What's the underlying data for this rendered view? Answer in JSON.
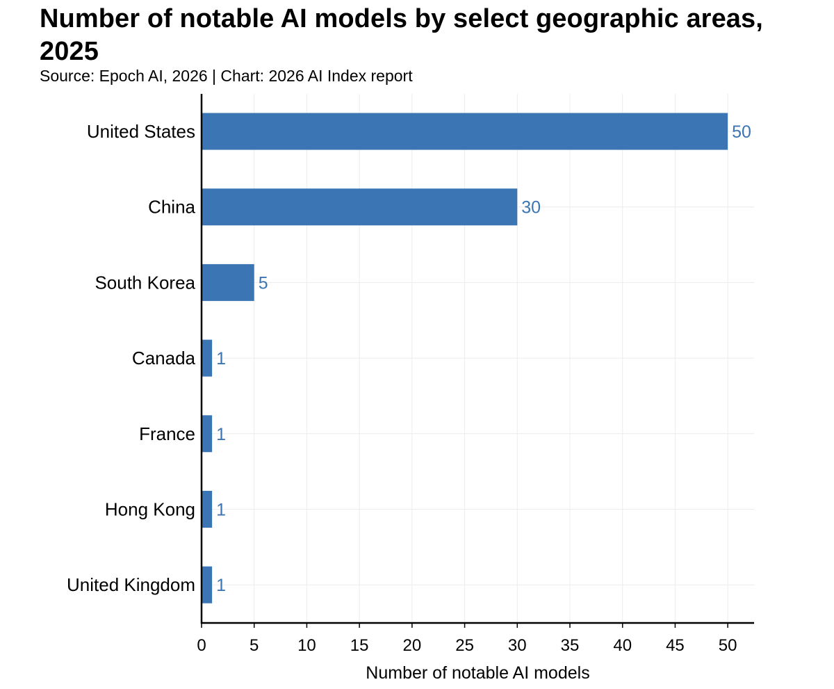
{
  "header": {
    "title": "Number of notable AI models by select geographic areas, 2025",
    "subtitle": "Source: Epoch AI, 2026 | Chart: 2026 AI Index report"
  },
  "colors": {
    "bar": "#3b75b3",
    "value_label": "#3b75b3",
    "grid": "#ececec",
    "axis": "#000000"
  },
  "chart_data": {
    "type": "bar",
    "orientation": "horizontal",
    "title": "Number of notable AI models by select geographic areas, 2025",
    "subtitle": "Source: Epoch AI, 2026 | Chart: 2026 AI Index report",
    "categories": [
      "United States",
      "China",
      "South Korea",
      "Canada",
      "France",
      "Hong Kong",
      "United Kingdom"
    ],
    "values": [
      50,
      30,
      5,
      1,
      1,
      1,
      1
    ],
    "data_labels": [
      "50",
      "30",
      "5",
      "1",
      "1",
      "1",
      "1"
    ],
    "xlabel": "Number of notable AI models",
    "ylabel": "",
    "xlim": [
      0,
      52.5
    ],
    "xticks": [
      0,
      5,
      10,
      15,
      20,
      25,
      30,
      35,
      40,
      45,
      50
    ],
    "xtick_labels": [
      "0",
      "5",
      "10",
      "15",
      "20",
      "25",
      "30",
      "35",
      "40",
      "45",
      "50"
    ],
    "grid": true,
    "legend": "none"
  }
}
